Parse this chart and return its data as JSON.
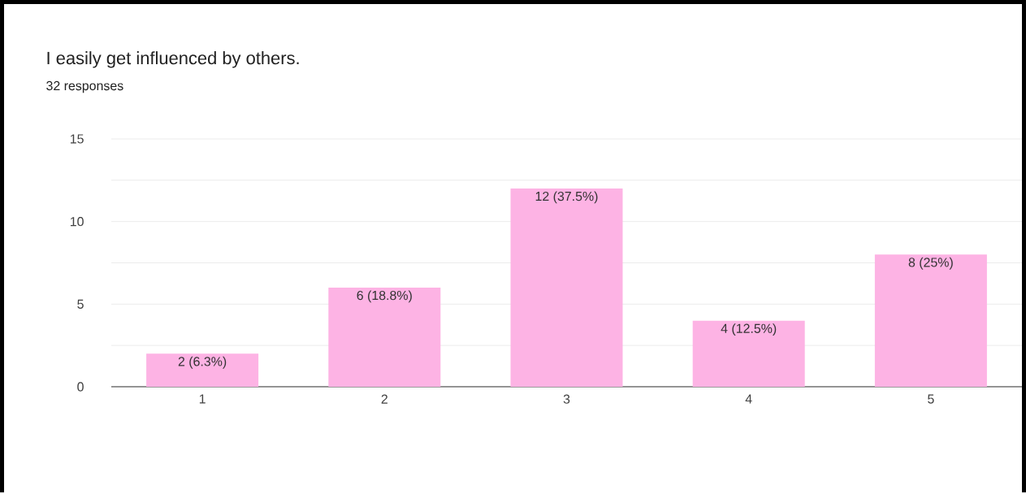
{
  "chart_data": {
    "type": "bar",
    "title": "I easily get influenced by others.",
    "subtitle": "32 responses",
    "categories": [
      "1",
      "2",
      "3",
      "4",
      "5"
    ],
    "values": [
      2,
      6,
      12,
      4,
      8
    ],
    "value_labels": [
      "2 (6.3%)",
      "6 (18.8%)",
      "12 (37.5%)",
      "4 (12.5%)",
      "8 (25%)"
    ],
    "color": "#fdb3e4",
    "ylim": [
      0,
      15
    ],
    "yticks": [
      0,
      {
        "value": 2.5,
        "label": null
      },
      5,
      {
        "value": 7.5,
        "label": null
      },
      10,
      {
        "value": 12.5,
        "label": null
      },
      15
    ],
    "grid": "y"
  }
}
